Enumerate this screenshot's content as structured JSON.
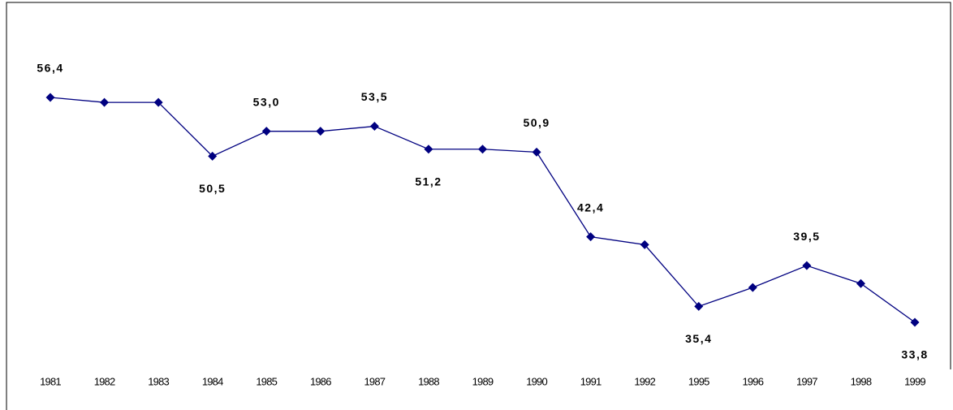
{
  "chart_data": {
    "type": "line",
    "categories": [
      "1981",
      "1982",
      "1983",
      "1984",
      "1985",
      "1986",
      "1987",
      "1988",
      "1989",
      "1990",
      "1991",
      "1992",
      "1995",
      "1996",
      "1997",
      "1998",
      "1999"
    ],
    "values": [
      56.4,
      55.9,
      55.9,
      50.5,
      53.0,
      53.0,
      53.5,
      51.2,
      51.2,
      50.9,
      42.4,
      41.6,
      35.4,
      37.3,
      39.5,
      37.7,
      33.8
    ],
    "value_labels": [
      "56,4",
      null,
      null,
      "50,5",
      "53,0",
      null,
      "53,5",
      "51,2",
      null,
      "50,9",
      "42,4",
      null,
      "35,4",
      null,
      "39,5",
      null,
      "33,8"
    ],
    "color": "#000080"
  }
}
